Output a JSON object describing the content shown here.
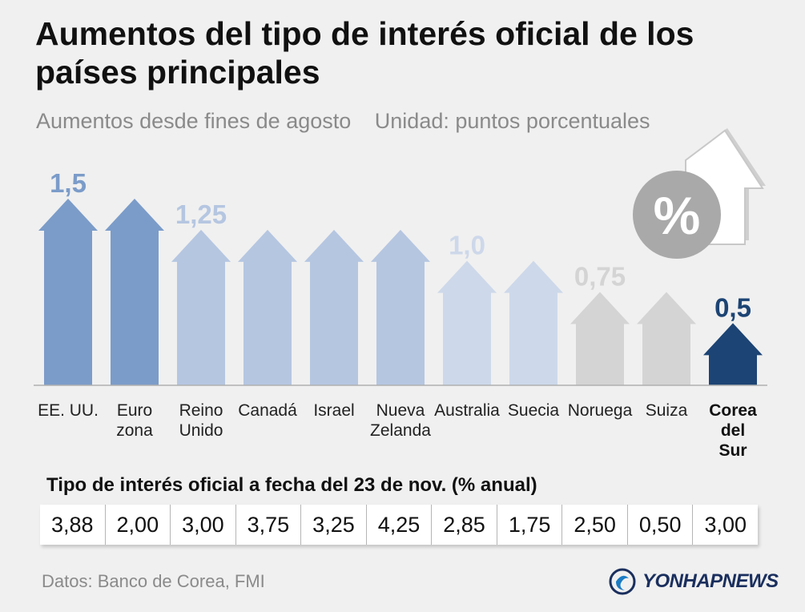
{
  "header": {
    "title": "Aumentos del tipo de interés oficial de los países principales",
    "subtitle": "Aumentos desde fines de agosto",
    "unit": "Unidad: puntos porcentuales"
  },
  "chart_data": {
    "type": "bar",
    "categories": [
      [
        "EE. UU."
      ],
      [
        "Euro",
        "zona"
      ],
      [
        "Reino",
        "Unido"
      ],
      [
        "Canadá"
      ],
      [
        "Israel"
      ],
      [
        "Nueva",
        "Zelanda"
      ],
      [
        "Australia"
      ],
      [
        "Suecia"
      ],
      [
        "Noruega"
      ],
      [
        "Suiza"
      ],
      [
        "Corea",
        "del",
        "Sur"
      ]
    ],
    "values": [
      1.5,
      1.5,
      1.25,
      1.25,
      1.25,
      1.25,
      1.0,
      1.0,
      0.75,
      0.75,
      0.5
    ],
    "value_labels": [
      "1,5",
      "",
      "1,25",
      "",
      "",
      "",
      "1,0",
      "",
      "0,75",
      "",
      "0,5"
    ],
    "bar_colors": [
      "#7b9cc9",
      "#7b9cc9",
      "#b5c6e1",
      "#b5c6e1",
      "#b5c6e1",
      "#b5c6e1",
      "#cdd8ea",
      "#cdd8ea",
      "#d4d4d4",
      "#d4d4d4",
      "#1c4474"
    ],
    "label_colors": [
      "#7b9cc9",
      "",
      "#b5c6e1",
      "",
      "",
      "",
      "#cdd8ea",
      "",
      "#d4d4d4",
      "",
      "#1c4474"
    ],
    "highlight_index": 10,
    "ylim": [
      0,
      1.5
    ],
    "grid": false,
    "legend": "none"
  },
  "table": {
    "title": "Tipo de interés oficial a fecha del 23 de nov. (% anual)",
    "values": [
      "3,88",
      "2,00",
      "3,00",
      "3,75",
      "3,25",
      "4,25",
      "2,85",
      "1,75",
      "2,50",
      "0,50",
      "3,00"
    ]
  },
  "footer": {
    "source": "Datos: Banco de Corea, FMI",
    "logo_text": "YONHAPNEWS"
  },
  "decor": {
    "icon": "percent-arrow-up-icon",
    "percent_symbol": "%"
  }
}
